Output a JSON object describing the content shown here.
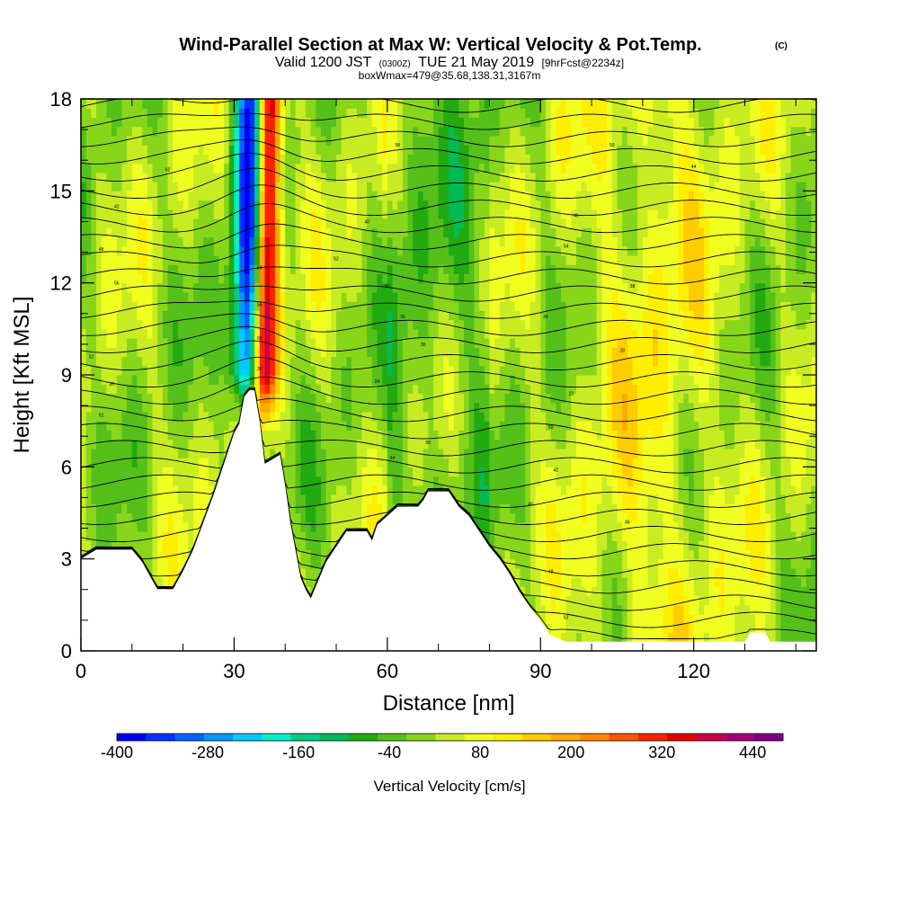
{
  "chart_data": {
    "type": "heatmap",
    "title": "Wind-Parallel Section at Max W: Vertical Velocity & Pot.Temp.",
    "title_mark": "(C)",
    "subtitle_parts": [
      "Valid 1200 JST",
      "(0300Z)",
      "TUE 21 May 2019",
      "[9hrFcst@2234z]"
    ],
    "subtitle2": "boxWmax=479@35.68,138.31,3167m",
    "xlabel": "Distance [nm]",
    "ylabel": "Height [Kft MSL]",
    "xlim": [
      0,
      144
    ],
    "ylim": [
      0,
      18
    ],
    "x_ticks": [
      "0",
      "30",
      "60",
      "90",
      "120"
    ],
    "x_tick_values": [
      0,
      30,
      60,
      90,
      120
    ],
    "y_ticks": [
      "0",
      "3",
      "6",
      "9",
      "12",
      "15",
      "18"
    ],
    "y_tick_values": [
      0,
      3,
      6,
      9,
      12,
      15,
      18
    ],
    "grid": false,
    "colorbar": {
      "label": "Vertical Velocity [cm/s]",
      "tick_labels": [
        "-400",
        "-280",
        "-160",
        "-40",
        "80",
        "200",
        "320",
        "440"
      ],
      "tick_values": [
        -400,
        -280,
        -160,
        -40,
        80,
        200,
        320,
        440
      ],
      "min": -400,
      "max": 480,
      "colors": [
        "#0000ff",
        "#0033ff",
        "#0066ff",
        "#0099ff",
        "#00ccff",
        "#00eecc",
        "#00cc88",
        "#00bb55",
        "#22aa11",
        "#55c01a",
        "#88d61a",
        "#c8ec22",
        "#f0ff20",
        "#ffee00",
        "#ffcc00",
        "#ffaa00",
        "#ff8800",
        "#ff5500",
        "#ff2200",
        "#e80000",
        "#cc0044",
        "#aa0077",
        "#800088"
      ]
    },
    "updraft_core": {
      "x_center": 36,
      "x_width": 2.5,
      "w_max": 479
    },
    "downdraft_core": {
      "x_center": 33,
      "x_width": 3,
      "w_min": -400
    },
    "terrain_kft": [
      [
        0,
        3.0
      ],
      [
        3,
        3.3
      ],
      [
        10,
        3.3
      ],
      [
        12,
        2.9
      ],
      [
        14,
        2.3
      ],
      [
        15,
        2.0
      ],
      [
        18,
        2.0
      ],
      [
        20,
        2.6
      ],
      [
        22,
        3.3
      ],
      [
        24,
        4.2
      ],
      [
        26,
        5.1
      ],
      [
        28,
        6.1
      ],
      [
        30,
        7.1
      ],
      [
        31,
        7.4
      ],
      [
        32,
        8.3
      ],
      [
        33,
        8.5
      ],
      [
        34,
        8.5
      ],
      [
        35,
        7.5
      ],
      [
        36,
        6.1
      ],
      [
        37,
        6.2
      ],
      [
        38,
        6.3
      ],
      [
        39,
        6.4
      ],
      [
        40,
        5.4
      ],
      [
        41,
        4.2
      ],
      [
        42,
        3.3
      ],
      [
        43,
        2.4
      ],
      [
        44,
        2.0
      ],
      [
        45,
        1.7
      ],
      [
        46,
        2.1
      ],
      [
        48,
        2.9
      ],
      [
        50,
        3.4
      ],
      [
        52,
        3.9
      ],
      [
        56,
        3.9
      ],
      [
        57,
        3.6
      ],
      [
        58,
        4.1
      ],
      [
        60,
        4.4
      ],
      [
        62,
        4.7
      ],
      [
        66,
        4.7
      ],
      [
        67,
        4.9
      ],
      [
        68,
        5.2
      ],
      [
        72,
        5.2
      ],
      [
        74,
        4.7
      ],
      [
        76,
        4.4
      ],
      [
        78,
        3.9
      ],
      [
        80,
        3.4
      ],
      [
        82,
        3.0
      ],
      [
        84,
        2.5
      ],
      [
        86,
        1.9
      ],
      [
        88,
        1.4
      ],
      [
        90,
        1.0
      ],
      [
        92,
        0.5
      ],
      [
        95,
        0.3
      ],
      [
        130,
        0.3
      ],
      [
        131,
        0.6
      ],
      [
        134,
        0.6
      ],
      [
        135,
        0.3
      ],
      [
        144,
        0.3
      ]
    ],
    "isentrope_labels": [
      "62",
      "58",
      "50",
      "44",
      "42",
      "40",
      "46",
      "48",
      "52",
      "54",
      "56",
      "60",
      "38",
      "36",
      "34",
      "32",
      "30",
      "28",
      "26",
      "24",
      "22"
    ]
  }
}
